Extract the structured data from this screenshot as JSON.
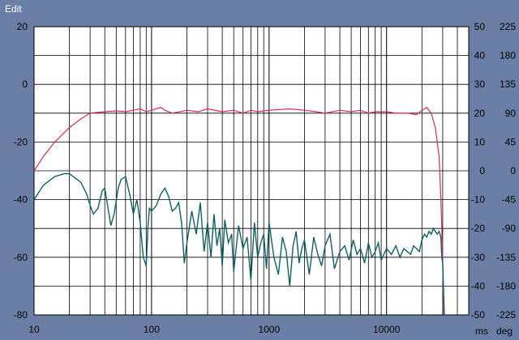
{
  "window": {
    "menu_label": "Edit"
  },
  "chart_data": {
    "type": "line",
    "title": "",
    "grid": true,
    "x": {
      "scale": "log",
      "range": [
        10,
        50000
      ],
      "ticks": [
        10,
        100,
        1000,
        10000
      ],
      "tick_labels": [
        "10",
        "100",
        "1000",
        "10000"
      ]
    },
    "y_left": {
      "range": [
        -80,
        20
      ],
      "ticks": [
        20,
        0,
        -20,
        -40,
        -60,
        -80
      ],
      "tick_labels": [
        "20",
        "0",
        "-20",
        "-40",
        "-60",
        "-80"
      ]
    },
    "y_right_1": {
      "label": "ms",
      "range": [
        -50,
        50
      ],
      "ticks": [
        50,
        40,
        30,
        20,
        10,
        0,
        -10,
        -20,
        -30,
        -40,
        -50
      ],
      "tick_labels": [
        "50",
        "40",
        "30",
        "20",
        "10",
        "0",
        "-10",
        "-20",
        "-30",
        "-40",
        "-50"
      ]
    },
    "y_right_2": {
      "label": "deg",
      "range": [
        -225,
        225
      ],
      "ticks": [
        225,
        180,
        135,
        90,
        45,
        0,
        -45,
        -90,
        -135,
        -180,
        -225
      ],
      "tick_labels": [
        "225",
        "180",
        "135",
        "90",
        "45",
        "0",
        "-45",
        "-90",
        "-135",
        "-180",
        "-225"
      ]
    },
    "series": [
      {
        "color": "#d6285a",
        "points": [
          [
            10,
            -30
          ],
          [
            12,
            -25
          ],
          [
            15,
            -20
          ],
          [
            20,
            -15
          ],
          [
            25,
            -12
          ],
          [
            30,
            -10
          ],
          [
            40,
            -9.5
          ],
          [
            50,
            -9.2
          ],
          [
            60,
            -9.5
          ],
          [
            70,
            -9
          ],
          [
            80,
            -8.5
          ],
          [
            90,
            -9.5
          ],
          [
            100,
            -9
          ],
          [
            120,
            -8
          ],
          [
            130,
            -9
          ],
          [
            150,
            -10
          ],
          [
            200,
            -9
          ],
          [
            250,
            -9.5
          ],
          [
            300,
            -8.5
          ],
          [
            400,
            -9.5
          ],
          [
            500,
            -9
          ],
          [
            600,
            -10
          ],
          [
            700,
            -9
          ],
          [
            800,
            -9.5
          ],
          [
            1000,
            -9
          ],
          [
            1500,
            -8.5
          ],
          [
            2000,
            -9
          ],
          [
            2500,
            -9.5
          ],
          [
            3000,
            -10
          ],
          [
            4000,
            -9
          ],
          [
            5000,
            -9.5
          ],
          [
            6000,
            -9
          ],
          [
            7000,
            -10
          ],
          [
            8000,
            -9.5
          ],
          [
            10000,
            -9.5
          ],
          [
            12000,
            -10
          ],
          [
            15000,
            -10
          ],
          [
            18000,
            -10.5
          ],
          [
            20000,
            -9
          ],
          [
            22000,
            -8
          ],
          [
            24000,
            -10
          ],
          [
            26000,
            -15
          ],
          [
            28000,
            -25
          ],
          [
            29000,
            -40
          ],
          [
            30000,
            -60
          ],
          [
            30500,
            -80
          ]
        ]
      },
      {
        "color": "#0e5f66",
        "points": [
          [
            10,
            -40
          ],
          [
            12,
            -35
          ],
          [
            15,
            -32
          ],
          [
            18,
            -31
          ],
          [
            20,
            -31
          ],
          [
            25,
            -34
          ],
          [
            28,
            -38
          ],
          [
            30,
            -42
          ],
          [
            32,
            -45
          ],
          [
            35,
            -43
          ],
          [
            38,
            -37
          ],
          [
            40,
            -36
          ],
          [
            43,
            -44
          ],
          [
            45,
            -49
          ],
          [
            48,
            -45
          ],
          [
            52,
            -36
          ],
          [
            55,
            -33
          ],
          [
            60,
            -32
          ],
          [
            65,
            -38
          ],
          [
            70,
            -45
          ],
          [
            75,
            -40
          ],
          [
            80,
            -48
          ],
          [
            85,
            -60
          ],
          [
            90,
            -63
          ],
          [
            93,
            -50
          ],
          [
            96,
            -43
          ],
          [
            100,
            -44
          ],
          [
            110,
            -42
          ],
          [
            120,
            -38
          ],
          [
            130,
            -36
          ],
          [
            140,
            -39
          ],
          [
            150,
            -44
          ],
          [
            160,
            -43
          ],
          [
            170,
            -41
          ],
          [
            180,
            -48
          ],
          [
            190,
            -62
          ],
          [
            200,
            -55
          ],
          [
            220,
            -44
          ],
          [
            240,
            -52
          ],
          [
            260,
            -41
          ],
          [
            280,
            -58
          ],
          [
            300,
            -48
          ],
          [
            320,
            -60
          ],
          [
            340,
            -45
          ],
          [
            360,
            -56
          ],
          [
            380,
            -50
          ],
          [
            400,
            -63
          ],
          [
            420,
            -47
          ],
          [
            450,
            -55
          ],
          [
            480,
            -52
          ],
          [
            500,
            -65
          ],
          [
            550,
            -49
          ],
          [
            600,
            -57
          ],
          [
            650,
            -53
          ],
          [
            700,
            -68
          ],
          [
            750,
            -48
          ],
          [
            800,
            -60
          ],
          [
            850,
            -55
          ],
          [
            900,
            -52
          ],
          [
            950,
            -64
          ],
          [
            1000,
            -48
          ],
          [
            1100,
            -60
          ],
          [
            1200,
            -66
          ],
          [
            1300,
            -53
          ],
          [
            1400,
            -58
          ],
          [
            1500,
            -70
          ],
          [
            1600,
            -56
          ],
          [
            1700,
            -51
          ],
          [
            1800,
            -62
          ],
          [
            1900,
            -57
          ],
          [
            2000,
            -54
          ],
          [
            2200,
            -66
          ],
          [
            2400,
            -53
          ],
          [
            2600,
            -59
          ],
          [
            2800,
            -63
          ],
          [
            3000,
            -56
          ],
          [
            3300,
            -52
          ],
          [
            3600,
            -64
          ],
          [
            4000,
            -58
          ],
          [
            4400,
            -56
          ],
          [
            4800,
            -61
          ],
          [
            5200,
            -54
          ],
          [
            5600,
            -59
          ],
          [
            6000,
            -57
          ],
          [
            6500,
            -62
          ],
          [
            7000,
            -55
          ],
          [
            7500,
            -60
          ],
          [
            8000,
            -58
          ],
          [
            8500,
            -55
          ],
          [
            9000,
            -61
          ],
          [
            10000,
            -57
          ],
          [
            11000,
            -59
          ],
          [
            12000,
            -56
          ],
          [
            13000,
            -60
          ],
          [
            14000,
            -57
          ],
          [
            15000,
            -58
          ],
          [
            16000,
            -59
          ],
          [
            17000,
            -56
          ],
          [
            18000,
            -57
          ],
          [
            19000,
            -58
          ],
          [
            20000,
            -54
          ],
          [
            21000,
            -52
          ],
          [
            22000,
            -53
          ],
          [
            23000,
            -51
          ],
          [
            24000,
            -52
          ],
          [
            25000,
            -50
          ],
          [
            26000,
            -51
          ],
          [
            27000,
            -52
          ],
          [
            28000,
            -51
          ],
          [
            29000,
            -53
          ],
          [
            29500,
            -60
          ],
          [
            30000,
            -62
          ],
          [
            31000,
            -80
          ]
        ]
      }
    ]
  }
}
